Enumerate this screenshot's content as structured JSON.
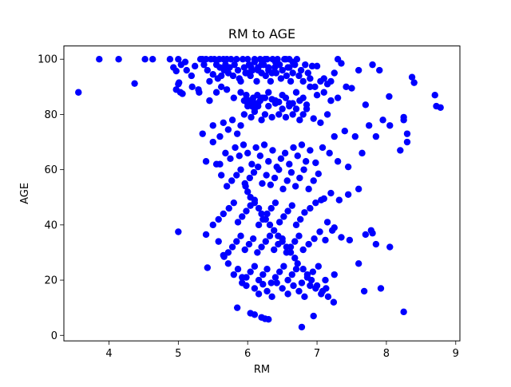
{
  "chart_data": {
    "type": "scatter",
    "title": "RM to AGE",
    "xlabel": "RM",
    "ylabel": "AGE",
    "xlim": [
      3.35,
      9.06
    ],
    "ylim": [
      -2.0,
      104.8
    ],
    "xticks": [
      4,
      5,
      6,
      7,
      8,
      9
    ],
    "yticks": [
      0,
      20,
      40,
      60,
      80,
      100
    ],
    "grid": false,
    "legend": "none",
    "marker_color": "#0000ff",
    "series": [
      {
        "x": [
          3.56,
          3.86,
          4.14,
          4.37,
          4.52,
          4.63,
          4.88,
          4.93,
          4.97,
          5.0,
          5.01,
          5.03,
          5.04,
          5.1,
          5.12,
          5.19,
          5.24,
          5.29,
          5.32,
          5.35,
          5.37,
          5.4,
          5.42,
          5.45,
          5.47,
          5.5,
          5.52,
          5.55,
          5.57,
          5.59,
          5.6,
          5.62,
          5.65,
          5.66,
          5.68,
          5.7,
          5.72,
          5.74,
          5.76,
          5.79,
          5.81,
          5.84,
          5.86,
          5.88,
          5.9,
          5.93,
          5.95,
          5.97,
          6.0,
          6.02,
          6.04,
          6.07,
          6.1,
          6.13,
          6.15,
          6.18,
          6.2,
          6.23,
          6.26,
          6.28,
          6.3,
          6.33,
          6.36,
          6.39,
          6.41,
          6.43,
          6.46,
          6.48,
          6.5,
          6.53,
          6.56,
          6.58,
          6.6,
          6.62,
          6.65,
          6.68,
          6.71,
          6.74,
          6.77,
          6.8,
          6.83,
          6.87,
          6.9,
          6.93,
          6.97,
          7.0,
          7.05,
          7.1,
          7.15,
          7.2,
          7.25,
          7.3,
          7.35,
          7.42,
          7.5,
          7.6,
          7.7,
          7.8,
          7.9,
          8.04,
          8.25,
          8.3,
          8.37,
          8.4,
          8.7,
          8.72,
          8.78,
          5.0,
          4.97,
          5.06,
          5.2,
          5.3,
          5.45,
          5.55,
          5.62,
          5.7,
          5.8,
          5.9,
          6.0,
          6.1,
          6.2,
          6.3,
          6.4,
          6.5,
          6.6,
          6.7,
          6.8,
          6.9,
          7.0,
          7.1,
          7.2,
          7.3,
          5.35,
          5.5,
          5.6,
          5.65,
          5.72,
          5.78,
          5.85,
          5.9,
          5.95,
          6.0,
          6.05,
          6.1,
          6.15,
          6.2,
          6.25,
          6.3,
          6.35,
          6.4,
          6.45,
          6.5,
          6.55,
          6.6,
          6.65,
          6.7,
          6.75,
          6.8,
          6.85,
          6.95,
          7.05,
          7.15,
          7.25,
          7.4,
          7.55,
          7.75,
          7.95,
          8.05,
          8.2,
          5.4,
          5.5,
          5.6,
          5.68,
          5.75,
          5.82,
          5.88,
          5.94,
          6.0,
          6.06,
          6.12,
          6.18,
          6.24,
          6.3,
          6.36,
          6.42,
          6.48,
          6.54,
          6.6,
          6.66,
          6.72,
          6.78,
          6.84,
          6.9,
          6.98,
          7.08,
          7.18,
          7.3,
          7.45,
          7.65,
          7.85,
          8.25,
          8.3,
          5.55,
          5.62,
          5.7,
          5.77,
          5.84,
          5.9,
          5.97,
          6.03,
          6.09,
          6.15,
          6.21,
          6.27,
          6.33,
          6.39,
          6.45,
          6.51,
          6.57,
          6.63,
          6.69,
          6.75,
          6.81,
          6.88,
          6.95,
          7.02,
          7.1,
          7.2,
          7.32,
          7.45,
          7.6,
          7.7,
          7.78,
          5.5,
          5.58,
          5.65,
          5.73,
          5.8,
          5.86,
          5.92,
          5.98,
          6.04,
          6.1,
          6.16,
          6.22,
          6.28,
          6.34,
          6.4,
          6.46,
          6.52,
          6.58,
          6.64,
          6.7,
          6.76,
          6.82,
          6.9,
          6.98,
          7.06,
          7.15,
          7.25,
          5.0,
          5.4,
          5.58,
          5.66,
          5.72,
          5.78,
          5.84,
          5.9,
          5.96,
          6.02,
          6.08,
          6.14,
          6.2,
          6.26,
          6.32,
          6.38,
          6.44,
          6.5,
          6.56,
          6.62,
          6.68,
          6.74,
          6.8,
          6.88,
          6.96,
          7.04,
          7.12,
          7.22,
          7.35,
          7.47,
          7.8,
          7.85,
          8.05,
          5.65,
          5.72,
          5.8,
          5.86,
          5.92,
          5.98,
          6.04,
          6.1,
          6.16,
          6.22,
          6.28,
          6.34,
          6.4,
          6.46,
          6.52,
          6.58,
          6.64,
          6.7,
          6.78,
          6.86,
          6.94,
          7.02,
          7.12,
          7.25,
          7.6,
          7.68,
          7.92,
          5.42,
          5.85,
          5.92,
          5.98,
          6.04,
          6.1,
          6.16,
          6.22,
          6.28,
          6.35,
          6.42,
          6.5,
          6.58,
          6.66,
          6.74,
          6.82,
          6.9,
          6.98,
          7.06,
          7.13,
          8.25,
          6.1,
          6.2,
          6.25,
          6.3,
          6.78,
          6.95,
          5.95,
          6.05,
          6.15,
          6.25,
          6.35,
          6.45,
          6.55,
          6.65,
          6.75,
          6.85,
          5.98,
          6.02,
          6.06,
          6.08,
          6.12,
          6.14,
          6.18,
          6.22,
          5.96,
          6.0,
          6.04,
          6.1,
          6.16,
          6.2,
          6.26,
          6.32,
          6.38,
          6.44,
          6.5,
          6.56,
          6.62,
          6.68,
          6.72,
          6.8,
          6.86,
          6.92,
          7.0,
          7.08,
          7.16,
          7.24,
          6.0,
          6.05,
          6.1,
          6.15,
          6.2,
          6.25,
          6.3,
          6.35,
          6.4,
          6.45,
          6.5,
          6.55,
          6.6,
          6.65
        ],
        "y": [
          88.0,
          100.0,
          100.0,
          91.2,
          100.0,
          100.0,
          100.0,
          97.0,
          95.7,
          100.0,
          91.5,
          88.0,
          98.0,
          99.0,
          96.0,
          94.0,
          97.5,
          89.0,
          100.0,
          100.0,
          98.0,
          100.0,
          96.0,
          92.0,
          100.0,
          94.5,
          100.0,
          98.0,
          93.0,
          100.0,
          97.0,
          94.0,
          100.0,
          96.0,
          98.0,
          100.0,
          95.0,
          97.0,
          100.0,
          94.0,
          98.0,
          100.0,
          96.0,
          93.0,
          92.0,
          100.0,
          97.0,
          95.0,
          100.0,
          98.0,
          94.0,
          96.0,
          100.0,
          92.0,
          97.0,
          100.0,
          95.0,
          98.0,
          94.0,
          100.0,
          96.0,
          92.0,
          100.0,
          97.0,
          95.0,
          100.0,
          98.0,
          93.0,
          96.0,
          100.0,
          94.0,
          97.0,
          100.0,
          92.0,
          95.0,
          98.0,
          100.0,
          94.0,
          96.0,
          92.0,
          98.0,
          95.0,
          93.0,
          97.5,
          90.0,
          97.5,
          92.0,
          93.0,
          91.0,
          92.0,
          95.0,
          100.0,
          98.5,
          90.0,
          89.5,
          96.0,
          83.5,
          98.0,
          96.0,
          86.5,
          78.0,
          73.0,
          93.5,
          91.5,
          87.0,
          83.0,
          82.5,
          91.0,
          89.0,
          87.5,
          90.0,
          88.0,
          85.0,
          88.0,
          90.0,
          89.0,
          86.0,
          88.0,
          84.0,
          82.0,
          86.0,
          88.0,
          85.0,
          87.0,
          84.0,
          88.0,
          86.0,
          90.0,
          87.0,
          88.0,
          85.0,
          86.0,
          73.0,
          76.0,
          72.0,
          77.0,
          74.5,
          78.0,
          73.0,
          76.0,
          80.0,
          83.0,
          79.0,
          81.0,
          84.0,
          78.0,
          80.0,
          83.0,
          79.0,
          84.0,
          80.0,
          82.0,
          79.0,
          83.0,
          80.0,
          82.0,
          78.0,
          80.0,
          82.0,
          78.5,
          77.0,
          80.0,
          72.0,
          74.0,
          72.0,
          76.0,
          78.0,
          76.0,
          67.0,
          63.0,
          70.0,
          62.0,
          66.0,
          64.0,
          68.0,
          65.0,
          69.0,
          66.0,
          62.0,
          68.0,
          65.0,
          69.0,
          63.0,
          67.0,
          61.0,
          64.0,
          66.0,
          62.0,
          68.0,
          65.0,
          69.0,
          63.0,
          67.0,
          62.5,
          68.0,
          66.0,
          63.0,
          61.0,
          66.0,
          72.0,
          79.0,
          70.0,
          62.0,
          58.0,
          54.0,
          56.0,
          58.0,
          60.0,
          54.0,
          57.0,
          59.0,
          61.0,
          55.0,
          58.0,
          54.5,
          57.0,
          60.0,
          53.0,
          56.0,
          59.0,
          54.0,
          57.0,
          60.0,
          53.0,
          56.0,
          58.5,
          49.5,
          51.5,
          49.0,
          51.0,
          53.0,
          36.5,
          38.0,
          40.0,
          42.0,
          44.0,
          46.0,
          48.0,
          41.0,
          43.0,
          45.0,
          47.0,
          49.0,
          40.0,
          42.0,
          44.0,
          46.0,
          48.0,
          41.0,
          43.0,
          45.0,
          47.0,
          40.0,
          42.0,
          44.5,
          46.0,
          48.0,
          49.0,
          41.0,
          39.0,
          37.5,
          36.5,
          34.0,
          28.5,
          30.0,
          32.0,
          34.0,
          36.0,
          31.0,
          33.0,
          35.0,
          30.0,
          32.0,
          34.0,
          36.0,
          31.0,
          33.0,
          35.0,
          30.0,
          32.0,
          34.0,
          36.0,
          31.0,
          33.0,
          35.0,
          37.5,
          34.5,
          38.0,
          35.5,
          34.5,
          37.0,
          33.0,
          32.0,
          29.0,
          26.0,
          22.0,
          24.0,
          19.0,
          21.0,
          23.0,
          25.0,
          20.0,
          22.0,
          24.0,
          19.0,
          21.0,
          23.0,
          25.0,
          20.0,
          22.0,
          24.0,
          19.0,
          21.0,
          23.0,
          25.0,
          20.0,
          22.0,
          26.0,
          16.0,
          17.0,
          24.5,
          10.0,
          21.0,
          18.0,
          8.0,
          17.0,
          15.0,
          18.5,
          16.0,
          14.0,
          19.0,
          17.0,
          15.0,
          18.0,
          16.0,
          14.0,
          18.0,
          17.0,
          15.0,
          17.0,
          8.5,
          7.5,
          6.5,
          6.0,
          5.8,
          3.0,
          7.0,
          85.0,
          84.0,
          83.0,
          86.0,
          85.5,
          84.5,
          86.0,
          84.0,
          85.0,
          83.5,
          87.0,
          85.0,
          83.0,
          86.0,
          84.0,
          87.0,
          85.0,
          86.0,
          55.0,
          52.0,
          50.0,
          48.0,
          46.0,
          44.0,
          42.0,
          40.0,
          38.0,
          36.0,
          34.0,
          32.0,
          30.0,
          28.0,
          26.0,
          24.0,
          22.0,
          20.0,
          18.0,
          16.0,
          14.0,
          12.0,
          95.0,
          97.0,
          99.0,
          96.0,
          98.0,
          100.0,
          97.0,
          95.0,
          99.0,
          98.0,
          96.0,
          100.0,
          97.0,
          99.0
        ]
      }
    ]
  }
}
